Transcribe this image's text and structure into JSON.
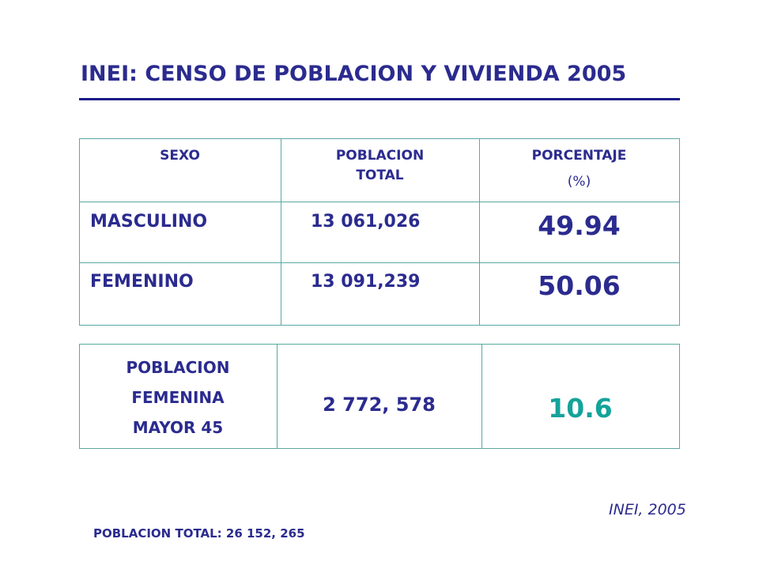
{
  "title": "INEI: CENSO DE POBLACION Y VIVIENDA 2005",
  "table1": {
    "headers": {
      "sexo": "SEXO",
      "poblacion_line1": "POBLACION",
      "poblacion_line2": "TOTAL",
      "porcentaje_line1": "PORCENTAJE",
      "porcentaje_line2": "(%)"
    },
    "rows": [
      {
        "sexo": "MASCULINO",
        "poblacion": "13 061,026",
        "porcentaje": "49.94"
      },
      {
        "sexo": "FEMENINO",
        "poblacion": "13 091,239",
        "porcentaje": "50.06"
      }
    ]
  },
  "table2": {
    "label_line1": "POBLACION",
    "label_line2": "FEMENINA",
    "label_line3": "MAYOR 45",
    "poblacion": "2 772, 578",
    "porcentaje": "10.6"
  },
  "source": "INEI, 2005",
  "total": "POBLACION TOTAL: 26 152, 265",
  "colors": {
    "text": "#2b2b8f",
    "rule": "#1c1c8a",
    "grid": "#5aa9a0",
    "highlight": "#14a39a"
  }
}
